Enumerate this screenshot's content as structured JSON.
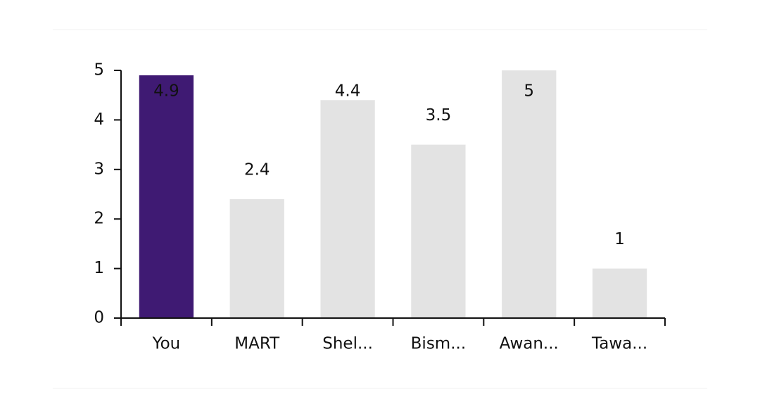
{
  "chart_data": {
    "type": "bar",
    "categories": [
      "You",
      "MART",
      "Shel...",
      "Bism...",
      "Awan...",
      "Tawa..."
    ],
    "values": [
      4.9,
      2.4,
      4.4,
      3.5,
      5,
      1
    ],
    "colors": [
      "#3f1a73",
      "#e3e3e3",
      "#e3e3e3",
      "#e3e3e3",
      "#e3e3e3",
      "#e3e3e3"
    ],
    "ylim": [
      0,
      5
    ],
    "yticks": [
      0,
      1,
      2,
      3,
      4,
      5
    ]
  }
}
